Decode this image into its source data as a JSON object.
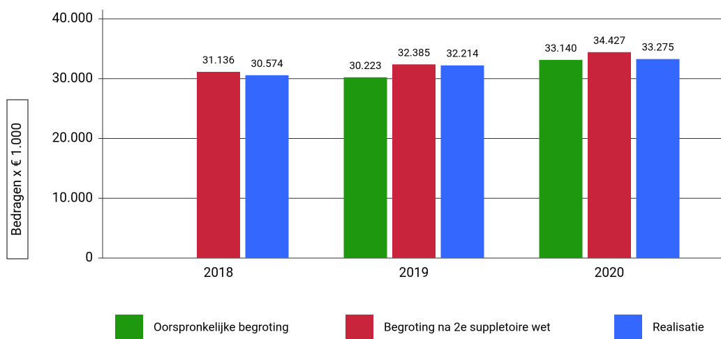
{
  "chart_data": {
    "type": "bar",
    "y_label": "Bedragen x € 1.000",
    "categories": [
      "2018",
      "2019",
      "2020"
    ],
    "series": [
      {
        "name": "Oorspronkelijke begroting",
        "color": "#1e980e",
        "values": [
          null,
          30223,
          33140
        ],
        "value_labels": [
          null,
          "30.223",
          "33.140"
        ]
      },
      {
        "name": "Begroting na 2e suppletoire wet",
        "color": "#c8253d",
        "values": [
          31136,
          32385,
          34427
        ],
        "value_labels": [
          "31.136",
          "32.385",
          "34.427"
        ]
      },
      {
        "name": "Realisatie",
        "color": "#3367fd",
        "values": [
          30574,
          32214,
          33275
        ],
        "value_labels": [
          "30.574",
          "32.214",
          "33.275"
        ]
      }
    ],
    "ylim": [
      0,
      40000
    ],
    "yticks": [
      0,
      {
        "value": 10000,
        "label": "10.000"
      },
      {
        "value": 20000,
        "label": "20.000"
      },
      {
        "value": 30000,
        "label": "30.000"
      },
      {
        "value": 40000,
        "label": "40.000"
      }
    ],
    "grid": true,
    "legend": "bottom"
  }
}
